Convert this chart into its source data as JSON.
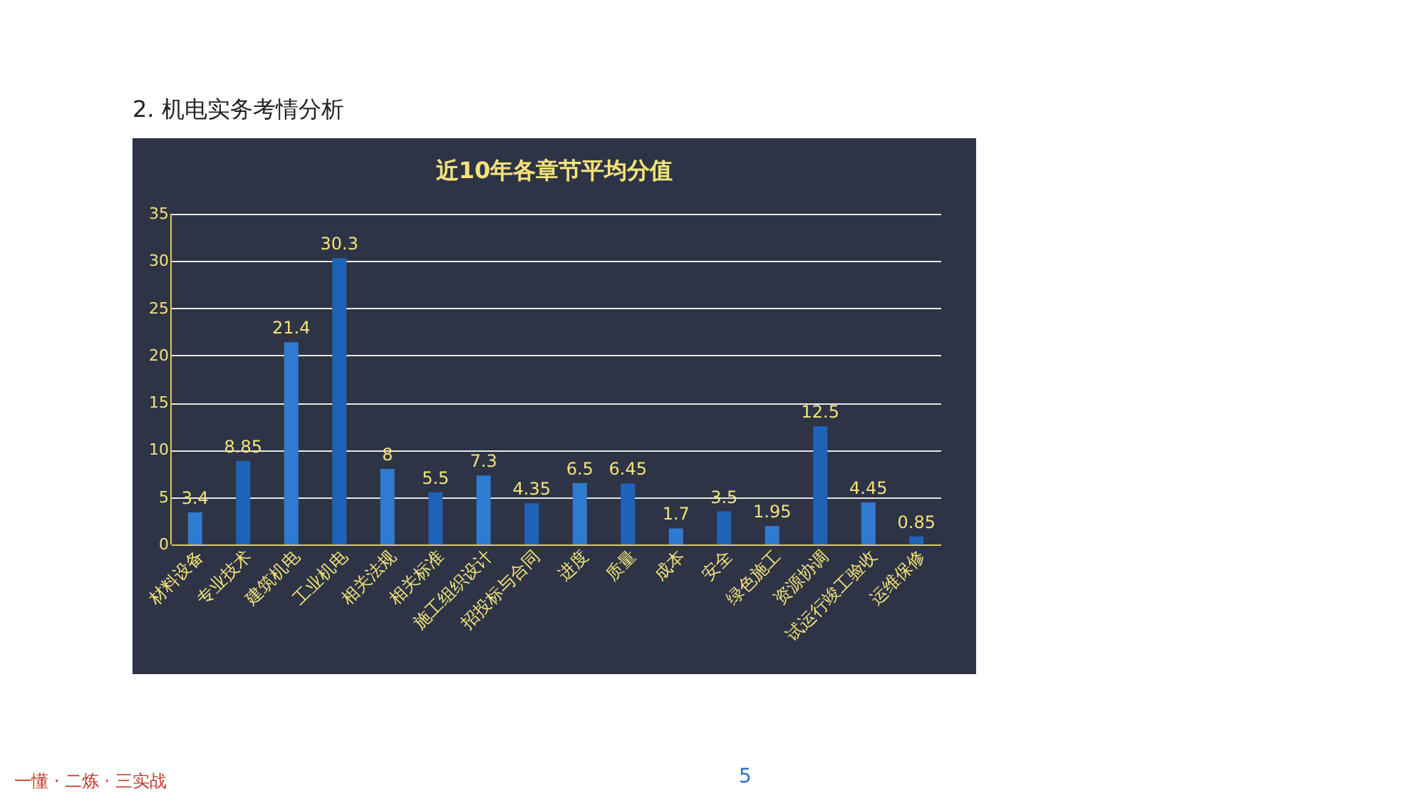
{
  "chart_data": {
    "type": "bar",
    "title": "近10年各章节平均分值",
    "categories": [
      "材料设备",
      "专业技术",
      "建筑机电",
      "工业机电",
      "相关法规",
      "相关标准",
      "施工组织设计",
      "招投标与合同",
      "进度",
      "质量",
      "成本",
      "安全",
      "绿色施工",
      "资源协调",
      "试运行竣工验收",
      "运维保修"
    ],
    "values": [
      3.4,
      8.85,
      21.4,
      30.3,
      8,
      5.5,
      7.3,
      4.35,
      6.5,
      6.45,
      1.7,
      3.5,
      1.95,
      12.5,
      4.45,
      0.85
    ],
    "colors": [
      "#2e7bcf",
      "#1f63b8",
      "#2e7bcf",
      "#1f63b8",
      "#2e7bcf",
      "#1f63b8",
      "#2e7bcf",
      "#1f63b8",
      "#2e7bcf",
      "#1f63b8",
      "#2e7bcf",
      "#1f63b8",
      "#2e7bcf",
      "#1f63b8",
      "#2e7bcf",
      "#1f63b8"
    ],
    "ylim": [
      0,
      35
    ],
    "yticks": [
      0,
      5,
      10,
      15,
      20,
      25,
      30,
      35
    ],
    "grid": "y",
    "data_labels": true,
    "legend": false,
    "annotations": [
      "2. 机电实务考情分析",
      "5",
      "一懂 · 二炼 · 三实战"
    ]
  }
}
